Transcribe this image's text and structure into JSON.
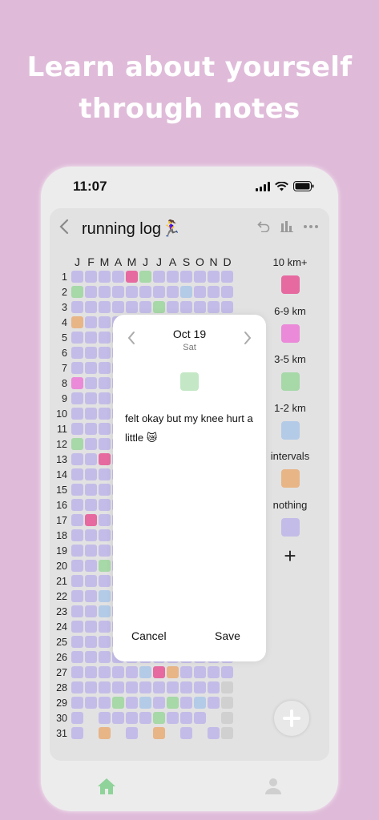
{
  "hero": {
    "line1": "Learn about yourself",
    "line2": "through notes"
  },
  "status": {
    "time": "11:07"
  },
  "log": {
    "title": "running log🏃‍♀️"
  },
  "months": [
    "J",
    "F",
    "M",
    "A",
    "M",
    "J",
    "J",
    "A",
    "S",
    "O",
    "N",
    "D"
  ],
  "days": [
    "1",
    "2",
    "3",
    "4",
    "5",
    "6",
    "7",
    "8",
    "9",
    "10",
    "11",
    "12",
    "13",
    "14",
    "15",
    "16",
    "17",
    "18",
    "19",
    "20",
    "21",
    "22",
    "23",
    "24",
    "25",
    "26",
    "27",
    "28",
    "29",
    "30",
    "31"
  ],
  "colors": {
    "p": "#c4bce8",
    "k": "#e66aa0",
    "m": "#ea8ad8",
    "g": "#a7d8a8",
    "b": "#b4cbe8",
    "o": "#e8b587",
    "x": "#d0d0d0",
    "gl": "#c4e8c6"
  },
  "grid": [
    "ppppkgpppppp",
    "gpppppppbppp",
    "ppppppgppppp",
    "opppppppppgp",
    "pppppppppppp",
    "pppppppppppp",
    "pppppppppppp",
    "mppppppppppp",
    "pppppppppppp",
    "pppppppppppp",
    "pppppppppppp",
    "gppppppppppp",
    "ppkppppppppp",
    "pppppppppppp",
    "pppppppppppp",
    "pppppppppppp",
    "pkpppppppppp",
    "pppppppppppp",
    "pppppppppppp",
    "ppgppppppppp",
    "pppppppppppp",
    "ppbppppppppp",
    "ppbppppppppp",
    "pppppppppppp",
    "pppppppppppp",
    "pppppppppppp",
    "pppppbkoppps",
    "pppppppppppx",
    "pppgpbpgpbpx",
    "p.ppppgppp.x",
    "p.o.p.o.p.px"
  ],
  "legend": [
    {
      "label": "10 km+",
      "color": "#e66aa0"
    },
    {
      "label": "6-9 km",
      "color": "#ea8ad8"
    },
    {
      "label": "3-5 km",
      "color": "#a7d8a8"
    },
    {
      "label": "1-2 km",
      "color": "#b4cbe8"
    },
    {
      "label": "intervals",
      "color": "#e8b587"
    },
    {
      "label": "nothing",
      "color": "#c4bce8"
    }
  ],
  "modal": {
    "date": "Oct 19",
    "weekday": "Sat",
    "note": "felt okay but my knee hurt a little 😿",
    "swatch_color": "#c4e8c6",
    "cancel": "Cancel",
    "save": "Save"
  },
  "icons": {
    "back": "chevron-left-icon",
    "undo": "undo-icon",
    "stats": "bar-chart-icon",
    "more": "more-icon",
    "add": "plus-icon",
    "home": "home-icon",
    "profile": "person-icon"
  }
}
